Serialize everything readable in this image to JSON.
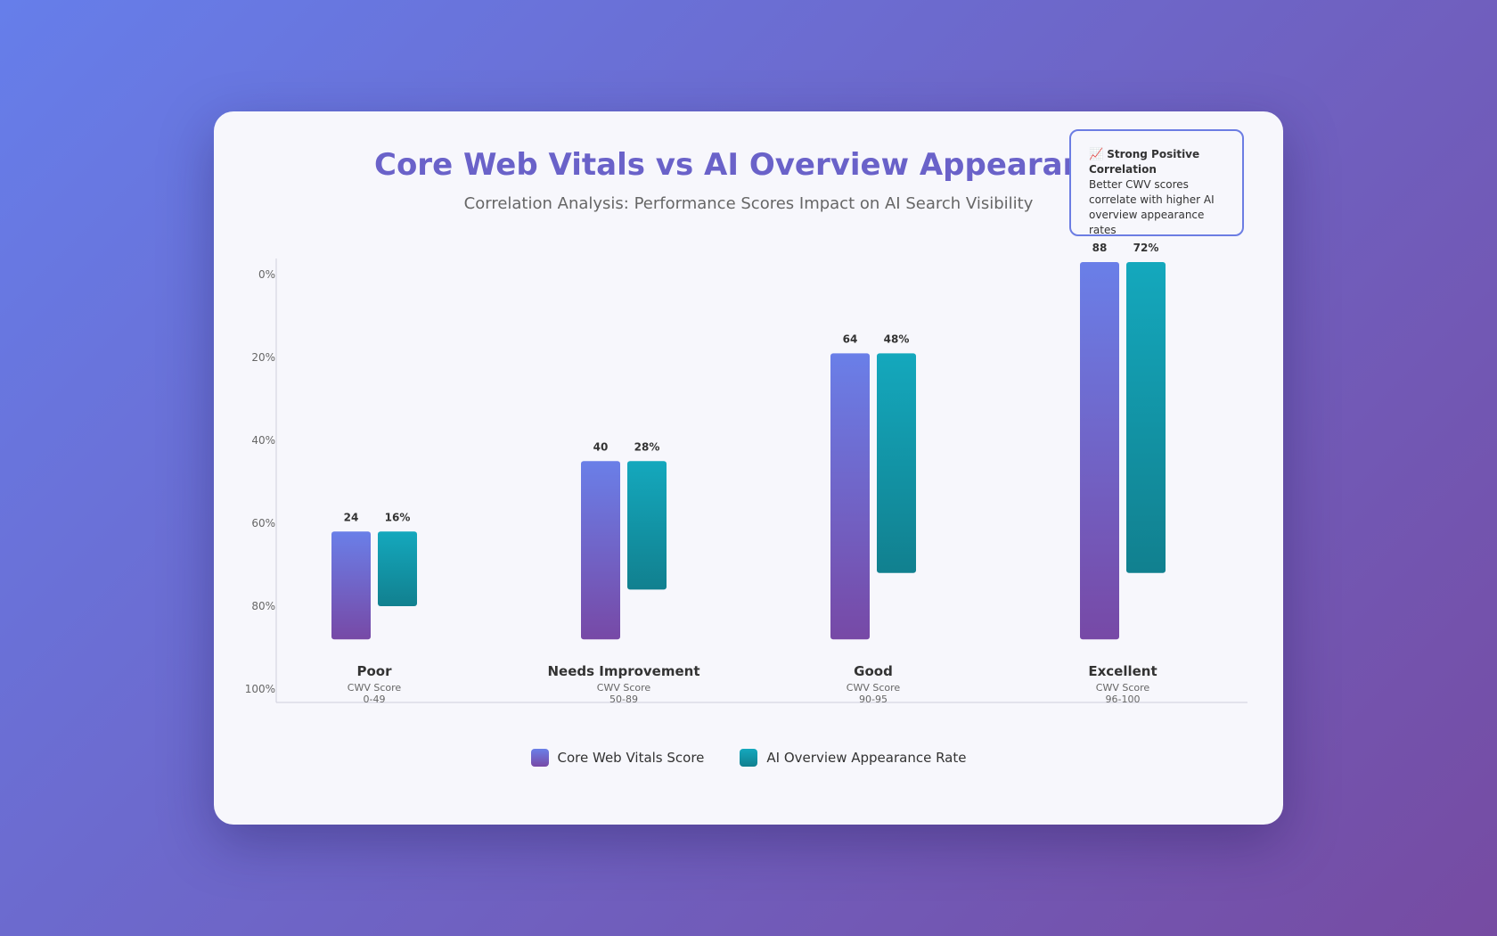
{
  "header": {
    "title": "Core Web Vitals vs AI Overview Appearance",
    "subtitle": "Correlation Analysis: Performance Scores Impact on AI Search Visibility"
  },
  "callout": {
    "icon": "chart-increasing-icon",
    "title": "Strong Positive Correlation",
    "text": "Better CWV scores correlate with higher AI overview appearance rates",
    "border_color": "#6c7de3"
  },
  "colors": {
    "cwv_top": "#6a7fe8",
    "cwv_bottom": "#7749a6",
    "ai_top": "#14a8bd",
    "ai_bottom": "#11808f",
    "title": "#6a62c9"
  },
  "chart_data": {
    "type": "bar",
    "title": "Core Web Vitals vs AI Overview Appearance",
    "subtitle": "Correlation Analysis: Performance Scores Impact on AI Search Visibility",
    "categories": [
      "Poor",
      "Needs Improvement",
      "Good",
      "Excellent"
    ],
    "category_sublabels": [
      [
        "CWV Score",
        "0-49"
      ],
      [
        "CWV Score",
        "50-89"
      ],
      [
        "CWV Score",
        "90-95"
      ],
      [
        "CWV Score",
        "96-100"
      ]
    ],
    "y_ticks": [
      "0%",
      "20%",
      "40%",
      "60%",
      "80%",
      "100%"
    ],
    "ylim": [
      0,
      100
    ],
    "legend_position": "bottom",
    "grid": false,
    "series": [
      {
        "name": "Core Web Vitals Score",
        "values": [
          24,
          40,
          64,
          88
        ],
        "labels": [
          "24",
          "40",
          "64",
          "88"
        ],
        "bar_start": [
          88,
          88,
          88,
          88
        ],
        "bar_end": [
          62,
          45,
          19,
          -3
        ]
      },
      {
        "name": "AI Overview Appearance Rate",
        "values": [
          16,
          28,
          48,
          72
        ],
        "labels": [
          "16%",
          "28%",
          "48%",
          "72%"
        ],
        "bar_start": [
          80,
          76,
          72,
          72
        ],
        "bar_end": [
          62,
          45,
          19,
          -3
        ]
      }
    ]
  }
}
